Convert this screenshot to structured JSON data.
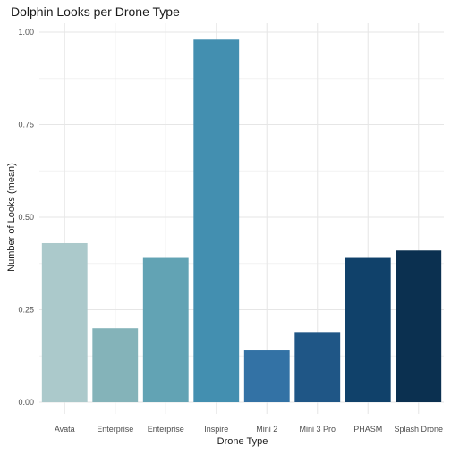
{
  "chart_data": {
    "type": "bar",
    "title": "Dolphin Looks per Drone Type",
    "xlabel": "Drone Type",
    "ylabel": "Number of Looks (mean)",
    "ylim": [
      0,
      1.0
    ],
    "yticks": [
      0.0,
      0.25,
      0.5,
      0.75,
      1.0
    ],
    "ytick_labels": [
      "0.00",
      "0.25",
      "0.50",
      "0.75",
      "1.00"
    ],
    "grid": true,
    "legend": "none",
    "categories": [
      "Avata",
      "Enterprise",
      "Enterprise",
      "Inspire",
      "Mini 2",
      "Mini 3 Pro",
      "PHASM",
      "Splash Drone"
    ],
    "values": [
      0.43,
      0.2,
      0.39,
      0.98,
      0.14,
      0.19,
      0.39,
      0.41
    ],
    "colors": [
      "#abc9cb",
      "#84b3b9",
      "#62a3b4",
      "#438fb0",
      "#3372a5",
      "#1f5686",
      "#10416a",
      "#0b3050"
    ]
  }
}
